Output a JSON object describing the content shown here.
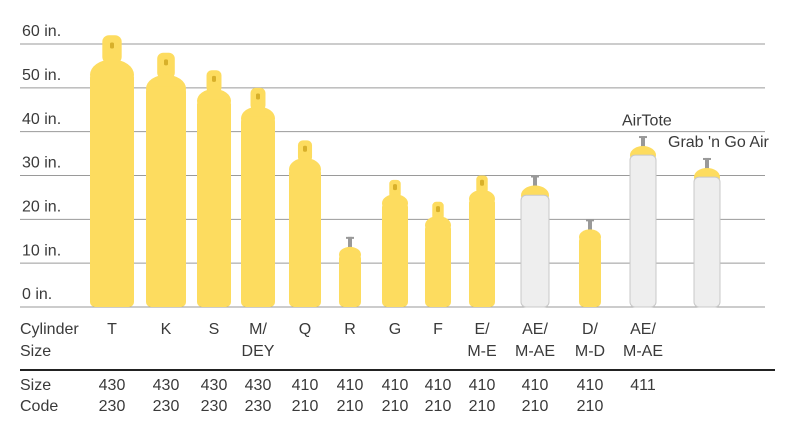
{
  "chart_data": {
    "type": "cylinder",
    "yticks": [
      {
        "value": 0,
        "label": "0 in."
      },
      {
        "value": 10,
        "label": "10 in."
      },
      {
        "value": 20,
        "label": "20 in."
      },
      {
        "value": 30,
        "label": "30 in."
      },
      {
        "value": 40,
        "label": "40 in."
      },
      {
        "value": 50,
        "label": "50 in."
      },
      {
        "value": 60,
        "label": "60 in."
      }
    ],
    "ylim": [
      0,
      60
    ],
    "grid": true,
    "category_heading": [
      "Cylinder",
      "Size"
    ],
    "categories": [
      [
        "T"
      ],
      [
        "K"
      ],
      [
        "S"
      ],
      [
        "M/",
        "DEY"
      ],
      [
        "Q"
      ],
      [
        "R"
      ],
      [
        "G"
      ],
      [
        "F"
      ],
      [
        "E/",
        "M-E"
      ],
      [
        "AE/",
        "M-AE"
      ],
      [
        "D/",
        "M-D"
      ],
      [
        "AE/",
        "M-AE"
      ],
      null
    ],
    "values": [
      62,
      58,
      54,
      50,
      38,
      16,
      29,
      24,
      30,
      30,
      20,
      39,
      34
    ],
    "colors": [
      "#fddc5f",
      "#fddc5f",
      "#fddc5f",
      "#fddc5f",
      "#fddc5f",
      "#fddc5f",
      "#fddc5f",
      "#fddc5f",
      "#fddc5f",
      "#eeeeee",
      "#fddc5f",
      "#eeeeee",
      "#eeeeee"
    ],
    "annotations": [
      {
        "text": "AirTote",
        "index": 11
      },
      {
        "text": "Grab 'n Go Air",
        "index": 12
      }
    ],
    "code_heading": [
      "Size",
      "Code"
    ],
    "size_codes": [
      [
        "430",
        "230"
      ],
      [
        "430",
        "230"
      ],
      [
        "430",
        "230"
      ],
      [
        "430",
        "230"
      ],
      [
        "410",
        "210"
      ],
      [
        "410",
        "210"
      ],
      [
        "410",
        "210"
      ],
      [
        "410",
        "210"
      ],
      [
        "410",
        "210"
      ],
      [
        "410",
        "210"
      ],
      [
        "410",
        "210"
      ],
      [
        "411"
      ],
      null
    ]
  }
}
